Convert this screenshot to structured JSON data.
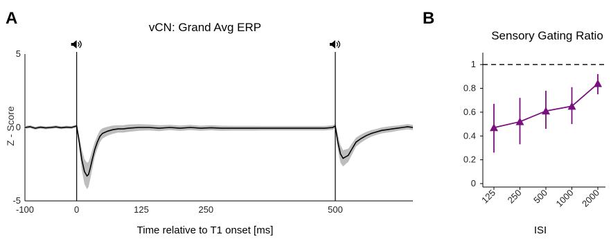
{
  "panels": {
    "a_letter": "A",
    "b_letter": "B"
  },
  "chart_data": [
    {
      "type": "line",
      "title": "vCN: Grand Avg ERP",
      "xlabel": "Time relative to T1 onset [ms]",
      "ylabel": "Z - Score",
      "xlim": [
        -100,
        650
      ],
      "ylim": [
        -5,
        5
      ],
      "xticks": [
        -100,
        0,
        125,
        250,
        500
      ],
      "xtick_labels": [
        "-100",
        "0",
        "125",
        "250",
        "500"
      ],
      "yticks": [
        5,
        0,
        -5
      ],
      "ytick_labels": [
        "5",
        "0",
        "-5"
      ],
      "stimulus_markers": [
        0,
        500
      ],
      "stimulus_icon": "speaker-icon",
      "grid": false,
      "colors": {
        "mean": "#000000",
        "sem": "#bdbdbd"
      },
      "series": [
        {
          "x": [
            -100,
            -90,
            -80,
            -70,
            -60,
            -50,
            -40,
            -30,
            -20,
            -10,
            0,
            5,
            10,
            15,
            20,
            23,
            26,
            30,
            35,
            40,
            45,
            50,
            60,
            70,
            80,
            90,
            100,
            120,
            140,
            160,
            180,
            200,
            220,
            240,
            260,
            280,
            300,
            320,
            340,
            360,
            380,
            400,
            420,
            440,
            460,
            480,
            495,
            500,
            505,
            510,
            515,
            520,
            525,
            530,
            535,
            540,
            550,
            560,
            570,
            580,
            590,
            600,
            610,
            620,
            630,
            640,
            650
          ],
          "y": [
            0.0,
            0.05,
            -0.05,
            0.02,
            -0.03,
            0.0,
            0.04,
            -0.02,
            0.02,
            0.0,
            0.1,
            -1.0,
            -2.2,
            -3.0,
            -3.3,
            -3.2,
            -2.8,
            -2.2,
            -1.5,
            -1.0,
            -0.6,
            -0.4,
            -0.25,
            -0.15,
            -0.1,
            -0.1,
            -0.05,
            0.0,
            0.0,
            -0.05,
            0.0,
            -0.05,
            0.0,
            -0.05,
            -0.02,
            -0.05,
            -0.05,
            -0.05,
            -0.05,
            -0.05,
            -0.05,
            -0.05,
            -0.05,
            -0.05,
            -0.05,
            -0.05,
            0.0,
            0.1,
            -1.0,
            -1.8,
            -2.1,
            -2.0,
            -1.9,
            -1.6,
            -1.3,
            -1.0,
            -0.75,
            -0.55,
            -0.4,
            -0.3,
            -0.2,
            -0.15,
            -0.1,
            -0.05,
            0.0,
            0.05,
            0.0
          ],
          "sem": [
            0.1,
            0.1,
            0.1,
            0.1,
            0.1,
            0.1,
            0.1,
            0.1,
            0.1,
            0.1,
            0.1,
            0.4,
            0.7,
            0.85,
            0.9,
            0.85,
            0.75,
            0.65,
            0.5,
            0.45,
            0.4,
            0.35,
            0.3,
            0.28,
            0.25,
            0.25,
            0.25,
            0.22,
            0.2,
            0.2,
            0.18,
            0.18,
            0.18,
            0.17,
            0.17,
            0.17,
            0.16,
            0.16,
            0.16,
            0.15,
            0.15,
            0.15,
            0.15,
            0.15,
            0.15,
            0.15,
            0.15,
            0.15,
            0.5,
            0.6,
            0.55,
            0.5,
            0.45,
            0.4,
            0.35,
            0.3,
            0.28,
            0.25,
            0.22,
            0.2,
            0.2,
            0.2,
            0.2,
            0.18,
            0.18,
            0.18,
            0.18
          ]
        }
      ]
    },
    {
      "type": "line",
      "title": "Sensory Gating Ratio",
      "xlabel": "ISI",
      "ylabel": "",
      "categories": [
        "125",
        "250",
        "500",
        "1000",
        "2000"
      ],
      "ylim": [
        0,
        1.1
      ],
      "yticks": [
        0,
        0.2,
        0.4,
        0.6,
        0.8,
        1
      ],
      "ytick_labels": [
        "0",
        "0.2",
        "0.4",
        "0.6",
        "0.8",
        "1"
      ],
      "reference_line": 1,
      "marker": "triangle",
      "grid": false,
      "colors": {
        "series": "#7a0f7f",
        "reference": "#000000"
      },
      "series": [
        {
          "values": [
            0.47,
            0.52,
            0.61,
            0.65,
            0.84
          ],
          "err_low": [
            0.26,
            0.33,
            0.46,
            0.5,
            0.75
          ],
          "err_high": [
            0.67,
            0.72,
            0.78,
            0.81,
            0.92
          ]
        }
      ]
    }
  ]
}
